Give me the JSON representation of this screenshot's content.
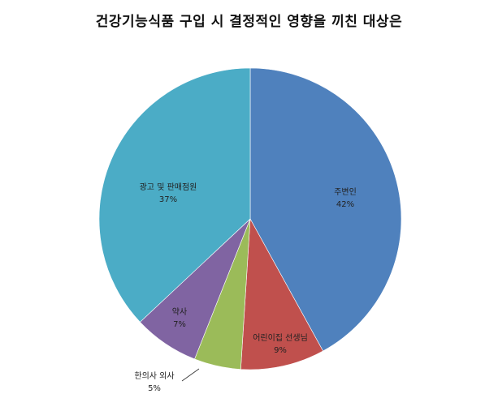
{
  "chart_data": {
    "type": "pie",
    "title": "건강기능식품 구입 시 결정적인 영향을 끼친 대상은",
    "slices": [
      {
        "label": "주변인",
        "value": 42,
        "value_label": "42%",
        "color": "#4f81bd"
      },
      {
        "label": "어린이집 선생님",
        "value": 9,
        "value_label": "9%",
        "color": "#c0504d"
      },
      {
        "label": "한의사 외사",
        "value": 5,
        "value_label": "5%",
        "color": "#9bbb59"
      },
      {
        "label": "약사",
        "value": 7,
        "value_label": "7%",
        "color": "#8064a2"
      },
      {
        "label": "광고 및 판매점원",
        "value": 37,
        "value_label": "37%",
        "color": "#4bacc6"
      }
    ],
    "legend": "none",
    "start": "top",
    "direction": "clockwise"
  }
}
